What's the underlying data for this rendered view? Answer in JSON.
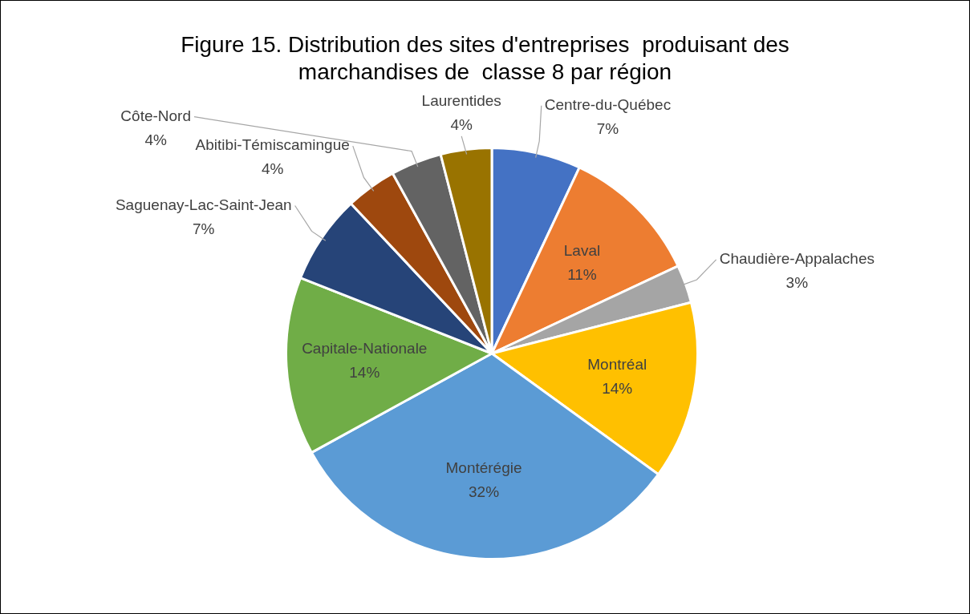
{
  "chart_data": {
    "type": "pie",
    "title": "Figure 15. Distribution des sites d'entreprises  produisant des marchandises de  classe 8 par région",
    "categories": [
      "Centre-du-Québec",
      "Laval",
      "Chaudière-Appalaches",
      "Montréal",
      "Montérégie",
      "Capitale-Nationale",
      "Saguenay-Lac-Saint-Jean",
      "Abitibi-Témiscamingue",
      "Côte-Nord",
      "Laurentides"
    ],
    "values": [
      7,
      11,
      3,
      14,
      32,
      14,
      7,
      4,
      4,
      4
    ],
    "value_labels": [
      "7%",
      "11%",
      "3%",
      "14%",
      "32%",
      "14%",
      "7%",
      "4%",
      "4%",
      "4%"
    ],
    "colors": [
      "#4472c4",
      "#ed7d31",
      "#a5a5a5",
      "#ffc000",
      "#5b9bd5",
      "#70ad47",
      "#264478",
      "#9e480e",
      "#636363",
      "#997300"
    ],
    "legend": false
  }
}
